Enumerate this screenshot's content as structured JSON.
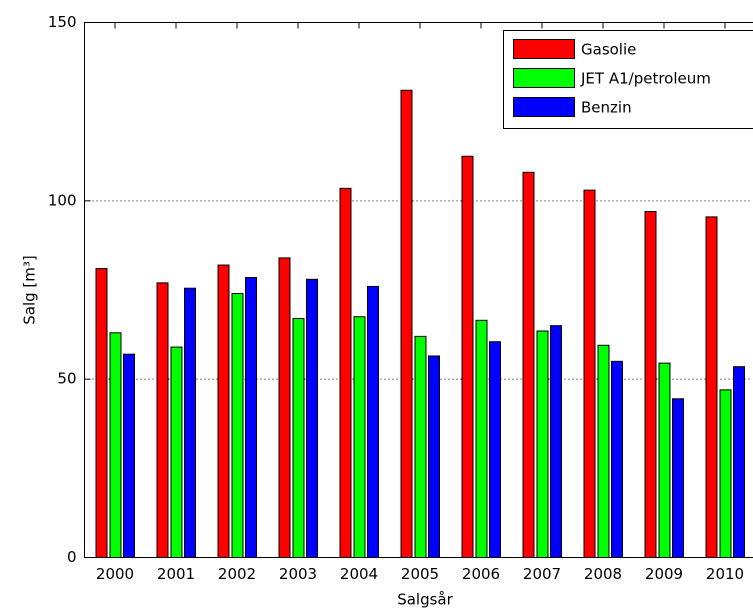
{
  "chart_data": {
    "type": "bar",
    "x_label": "Salgsår",
    "y_label": "Salg [m³]",
    "categories": [
      "2000",
      "2001",
      "2002",
      "2003",
      "2004",
      "2005",
      "2006",
      "2007",
      "2008",
      "2009",
      "2010"
    ],
    "series": [
      {
        "name": "Gasolie",
        "color": "#ff0000",
        "values": [
          81,
          77,
          82,
          84,
          103.5,
          131,
          112.5,
          108,
          103,
          97,
          95.5
        ]
      },
      {
        "name": "JET A1/petroleum",
        "color": "#00ff00",
        "values": [
          63,
          59,
          74,
          67,
          67.5,
          62,
          66.5,
          63.5,
          59.5,
          54.5,
          47
        ]
      },
      {
        "name": "Benzin",
        "color": "#0000ff",
        "values": [
          57,
          75.5,
          78.5,
          78,
          76,
          56.5,
          60.5,
          65,
          55,
          44.5,
          53.5
        ]
      }
    ],
    "ylim": [
      0,
      150
    ],
    "yticks": [
      0,
      50,
      100,
      150
    ],
    "grid": true,
    "legend": "upper right"
  }
}
